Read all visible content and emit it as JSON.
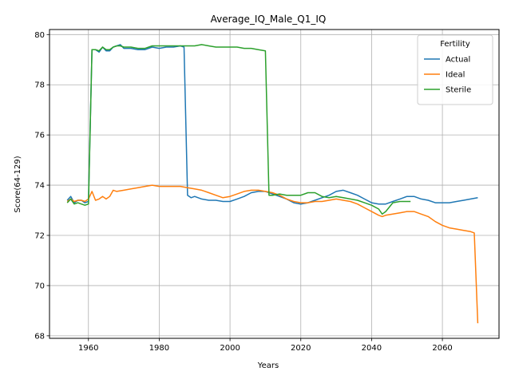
{
  "chart_data": {
    "type": "line",
    "title": "Average_IQ_Male_Q1_IQ",
    "xlabel": "Years",
    "ylabel": "Score(64-129)",
    "xlim": [
      1949,
      2076
    ],
    "ylim": [
      67.9,
      80.2
    ],
    "xticks": [
      1960,
      1980,
      2000,
      2020,
      2040,
      2060
    ],
    "yticks": [
      68,
      70,
      72,
      74,
      76,
      78,
      80
    ],
    "grid": true,
    "legend": {
      "title": "Fertility",
      "placement": "top-right"
    },
    "series": [
      {
        "name": "Actual",
        "color": "#1f77b4",
        "x": [
          1954,
          1955,
          1956,
          1957,
          1958,
          1959,
          1960,
          1961,
          1962,
          1963,
          1964,
          1965,
          1966,
          1967,
          1968,
          1969,
          1970,
          1972,
          1974,
          1976,
          1978,
          1980,
          1982,
          1984,
          1986,
          1987,
          1988,
          1989,
          1990,
          1992,
          1994,
          1996,
          1998,
          2000,
          2002,
          2004,
          2006,
          2008,
          2010,
          2012,
          2014,
          2016,
          2018,
          2020,
          2022,
          2024,
          2026,
          2028,
          2030,
          2032,
          2034,
          2036,
          2038,
          2040,
          2042,
          2044,
          2046,
          2048,
          2050,
          2052,
          2054,
          2056,
          2058,
          2060,
          2062,
          2064,
          2066,
          2068,
          2070
        ],
        "values": [
          73.4,
          73.55,
          73.3,
          73.4,
          73.4,
          73.3,
          73.35,
          79.4,
          79.4,
          79.3,
          79.5,
          79.35,
          79.35,
          79.5,
          79.55,
          79.6,
          79.45,
          79.45,
          79.4,
          79.4,
          79.5,
          79.45,
          79.5,
          79.5,
          79.55,
          79.5,
          73.6,
          73.5,
          73.55,
          73.45,
          73.4,
          73.4,
          73.35,
          73.35,
          73.45,
          73.55,
          73.7,
          73.75,
          73.75,
          73.65,
          73.55,
          73.45,
          73.3,
          73.25,
          73.3,
          73.4,
          73.5,
          73.6,
          73.75,
          73.8,
          73.7,
          73.6,
          73.45,
          73.3,
          73.25,
          73.25,
          73.35,
          73.45,
          73.55,
          73.55,
          73.45,
          73.4,
          73.3,
          73.3,
          73.3,
          73.35,
          73.4,
          73.45,
          73.5
        ]
      },
      {
        "name": "Ideal",
        "color": "#ff7f0e",
        "x": [
          1954,
          1955,
          1956,
          1957,
          1958,
          1959,
          1960,
          1961,
          1962,
          1963,
          1964,
          1965,
          1966,
          1967,
          1968,
          1970,
          1972,
          1974,
          1976,
          1978,
          1980,
          1982,
          1984,
          1986,
          1988,
          1990,
          1992,
          1994,
          1996,
          1998,
          2000,
          2002,
          2004,
          2006,
          2008,
          2010,
          2012,
          2014,
          2016,
          2018,
          2020,
          2022,
          2024,
          2026,
          2028,
          2030,
          2032,
          2034,
          2036,
          2038,
          2040,
          2042,
          2043,
          2044,
          2046,
          2048,
          2050,
          2052,
          2054,
          2056,
          2058,
          2060,
          2062,
          2064,
          2066,
          2068,
          2069,
          2070
        ],
        "values": [
          73.35,
          73.45,
          73.35,
          73.4,
          73.4,
          73.35,
          73.45,
          73.75,
          73.4,
          73.45,
          73.55,
          73.45,
          73.55,
          73.8,
          73.75,
          73.8,
          73.85,
          73.9,
          73.95,
          74.0,
          73.95,
          73.95,
          73.95,
          73.95,
          73.9,
          73.85,
          73.8,
          73.7,
          73.6,
          73.5,
          73.55,
          73.65,
          73.75,
          73.8,
          73.8,
          73.75,
          73.7,
          73.6,
          73.45,
          73.35,
          73.3,
          73.3,
          73.35,
          73.35,
          73.4,
          73.45,
          73.4,
          73.35,
          73.25,
          73.1,
          72.95,
          72.8,
          72.75,
          72.8,
          72.85,
          72.9,
          72.95,
          72.95,
          72.85,
          72.75,
          72.55,
          72.4,
          72.3,
          72.25,
          72.2,
          72.15,
          72.1,
          68.5
        ]
      },
      {
        "name": "Sterile",
        "color": "#2ca02c",
        "x": [
          1954,
          1955,
          1956,
          1957,
          1958,
          1959,
          1960,
          1961,
          1962,
          1963,
          1964,
          1965,
          1966,
          1967,
          1968,
          1969,
          1970,
          1972,
          1974,
          1976,
          1978,
          1980,
          1982,
          1984,
          1986,
          1988,
          1990,
          1992,
          1994,
          1996,
          1998,
          2000,
          2002,
          2004,
          2006,
          2008,
          2010,
          2011,
          2012,
          2014,
          2016,
          2018,
          2020,
          2022,
          2024,
          2026,
          2028,
          2030,
          2032,
          2034,
          2036,
          2038,
          2040,
          2042,
          2043,
          2044,
          2046,
          2048,
          2050,
          2051
        ],
        "values": [
          73.3,
          73.45,
          73.25,
          73.3,
          73.25,
          73.2,
          73.25,
          79.4,
          79.4,
          79.35,
          79.5,
          79.4,
          79.4,
          79.5,
          79.55,
          79.55,
          79.5,
          79.5,
          79.45,
          79.45,
          79.55,
          79.55,
          79.55,
          79.55,
          79.55,
          79.55,
          79.55,
          79.6,
          79.55,
          79.5,
          79.5,
          79.5,
          79.5,
          79.45,
          79.45,
          79.4,
          79.35,
          73.6,
          73.6,
          73.65,
          73.6,
          73.6,
          73.6,
          73.7,
          73.7,
          73.55,
          73.5,
          73.55,
          73.5,
          73.45,
          73.4,
          73.3,
          73.2,
          73.05,
          72.85,
          72.95,
          73.3,
          73.35,
          73.35,
          73.35
        ]
      }
    ]
  }
}
